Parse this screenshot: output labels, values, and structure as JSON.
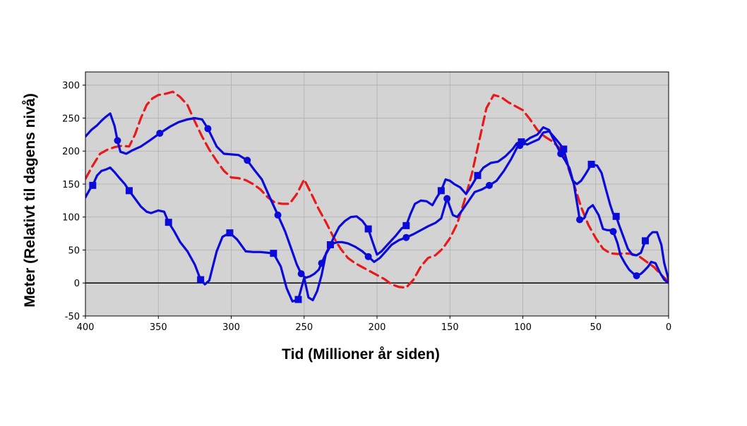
{
  "chart_data": {
    "type": "line",
    "title": "",
    "xlabel": "Tid (Millioner år siden)",
    "ylabel": "Meter (Relativt til dagens nivå)",
    "xlim": [
      400,
      0
    ],
    "ylim": [
      -50,
      320
    ],
    "x_ticks": [
      400,
      350,
      300,
      250,
      200,
      150,
      100,
      50,
      0
    ],
    "y_ticks": [
      -50,
      0,
      50,
      100,
      150,
      200,
      250,
      300
    ],
    "grid": true,
    "zero_line": true,
    "background": "#d3d3d3",
    "series": [
      {
        "color": "#e8191b",
        "dash": "dashed",
        "marker": "none",
        "x": [
          400,
          395,
          390,
          385,
          380,
          375,
          370,
          366,
          362,
          358,
          354,
          350,
          345,
          340,
          335,
          330,
          325,
          320,
          315,
          310,
          305,
          300,
          295,
          290,
          285,
          280,
          275,
          270,
          265,
          260,
          255,
          250,
          245,
          240,
          235,
          230,
          225,
          220,
          215,
          210,
          205,
          200,
          195,
          190,
          185,
          180,
          175,
          170,
          165,
          160,
          155,
          150,
          145,
          140,
          135,
          130,
          125,
          120,
          115,
          110,
          105,
          100,
          95,
          90,
          85,
          80,
          75,
          70,
          65,
          60,
          55,
          50,
          45,
          40,
          35,
          30,
          25,
          20,
          15,
          10,
          5,
          0
        ],
        "y": [
          158,
          178,
          196,
          202,
          206,
          208,
          207,
          225,
          250,
          270,
          280,
          285,
          287,
          290,
          282,
          270,
          245,
          222,
          202,
          185,
          170,
          160,
          159,
          156,
          150,
          142,
          130,
          122,
          120,
          120,
          135,
          157,
          135,
          112,
          92,
          70,
          52,
          38,
          30,
          24,
          18,
          12,
          6,
          -2,
          -6,
          -7,
          5,
          25,
          38,
          42,
          52,
          68,
          90,
          125,
          165,
          215,
          265,
          285,
          282,
          274,
          268,
          262,
          248,
          232,
          222,
          215,
          205,
          182,
          150,
          115,
          88,
          68,
          52,
          45,
          44,
          45,
          44,
          40,
          32,
          24,
          12,
          2
        ]
      },
      {
        "color": "#0b0bd9",
        "dash": "solid",
        "marker": "circle",
        "marker_x": [
          378,
          349,
          316,
          289,
          268,
          252,
          238,
          206,
          180,
          152,
          123,
          102,
          74,
          61,
          38,
          22
        ],
        "x": [
          400,
          396,
          392,
          389,
          386,
          383,
          380,
          378,
          376,
          372,
          368,
          362,
          356,
          349,
          342,
          336,
          330,
          325,
          320,
          316,
          310,
          305,
          300,
          295,
          289,
          284,
          279,
          274,
          268,
          263,
          259,
          255,
          252,
          249,
          246,
          243,
          240,
          238,
          236,
          233,
          230,
          227,
          224,
          220,
          215,
          210,
          206,
          202,
          198,
          194,
          190,
          185,
          180,
          175,
          170,
          165,
          160,
          156,
          152,
          148,
          145,
          141,
          137,
          133,
          128,
          123,
          118,
          113,
          108,
          104,
          100,
          95,
          90,
          86,
          82,
          79,
          76,
          74,
          71,
          68,
          65,
          62,
          61,
          58,
          55,
          52,
          48,
          45,
          42,
          40,
          38,
          35,
          33,
          30,
          27,
          24,
          22,
          19,
          17,
          14,
          12,
          9,
          6,
          3,
          0
        ],
        "y": [
          222,
          232,
          239,
          246,
          252,
          257,
          238,
          216,
          199,
          196,
          201,
          207,
          216,
          227,
          237,
          244,
          248,
          250,
          248,
          234,
          207,
          196,
          195,
          194,
          186,
          171,
          157,
          132,
          103,
          78,
          53,
          28,
          14,
          8,
          10,
          14,
          20,
          30,
          40,
          52,
          60,
          62,
          62,
          60,
          55,
          48,
          40,
          32,
          38,
          48,
          58,
          65,
          69,
          74,
          80,
          86,
          91,
          98,
          128,
          103,
          100,
          112,
          125,
          138,
          142,
          148,
          155,
          170,
          188,
          205,
          212,
          220,
          225,
          236,
          232,
          218,
          205,
          196,
          186,
          174,
          150,
          110,
          96,
          98,
          113,
          118,
          103,
          82,
          80,
          80,
          78,
          60,
          42,
          30,
          20,
          14,
          11,
          14,
          18,
          25,
          32,
          30,
          16,
          5,
          0
        ]
      },
      {
        "color": "#0b0bd9",
        "dash": "solid",
        "marker": "square",
        "marker_x": [
          395,
          370,
          343,
          321,
          301,
          271,
          254,
          232,
          206,
          180,
          156,
          131,
          101,
          72,
          53,
          36,
          16
        ],
        "x": [
          400,
          397,
          395,
          392,
          389,
          386,
          383,
          380,
          377,
          373,
          370,
          366,
          362,
          358,
          355,
          350,
          346,
          343,
          339,
          335,
          330,
          325,
          321,
          318,
          315,
          313,
          310,
          306,
          301,
          296,
          290,
          285,
          280,
          271,
          266,
          262,
          258,
          254,
          250,
          247,
          244,
          241,
          238,
          235,
          232,
          229,
          226,
          222,
          218,
          214,
          210,
          206,
          203,
          200,
          197,
          192,
          187,
          183,
          180,
          177,
          174,
          170,
          166,
          162,
          159,
          156,
          153,
          150,
          147,
          143,
          139,
          135,
          131,
          127,
          122,
          117,
          112,
          107,
          104,
          101,
          97,
          93,
          89,
          86,
          82,
          78,
          75,
          72,
          69,
          66,
          63,
          60,
          57,
          53,
          49,
          46,
          43,
          40,
          38,
          36,
          34,
          31,
          28,
          25,
          22,
          19,
          16,
          13,
          11,
          8,
          5,
          3,
          0
        ],
        "y": [
          130,
          142,
          148,
          163,
          170,
          172,
          175,
          168,
          160,
          150,
          140,
          128,
          116,
          108,
          106,
          110,
          108,
          92,
          78,
          62,
          48,
          28,
          5,
          -2,
          4,
          22,
          48,
          70,
          76,
          66,
          48,
          47,
          47,
          45,
          25,
          -8,
          -28,
          -25,
          8,
          -22,
          -26,
          -12,
          12,
          45,
          58,
          72,
          85,
          94,
          100,
          101,
          94,
          82,
          62,
          43,
          48,
          60,
          72,
          83,
          87,
          105,
          120,
          125,
          124,
          118,
          130,
          140,
          157,
          155,
          150,
          145,
          135,
          148,
          163,
          175,
          182,
          184,
          192,
          203,
          212,
          214,
          210,
          214,
          218,
          228,
          230,
          220,
          212,
          203,
          178,
          156,
          150,
          155,
          165,
          180,
          178,
          167,
          142,
          118,
          105,
          101,
          88,
          70,
          52,
          43,
          42,
          46,
          64,
          73,
          77,
          77,
          58,
          30,
          5
        ]
      }
    ]
  }
}
